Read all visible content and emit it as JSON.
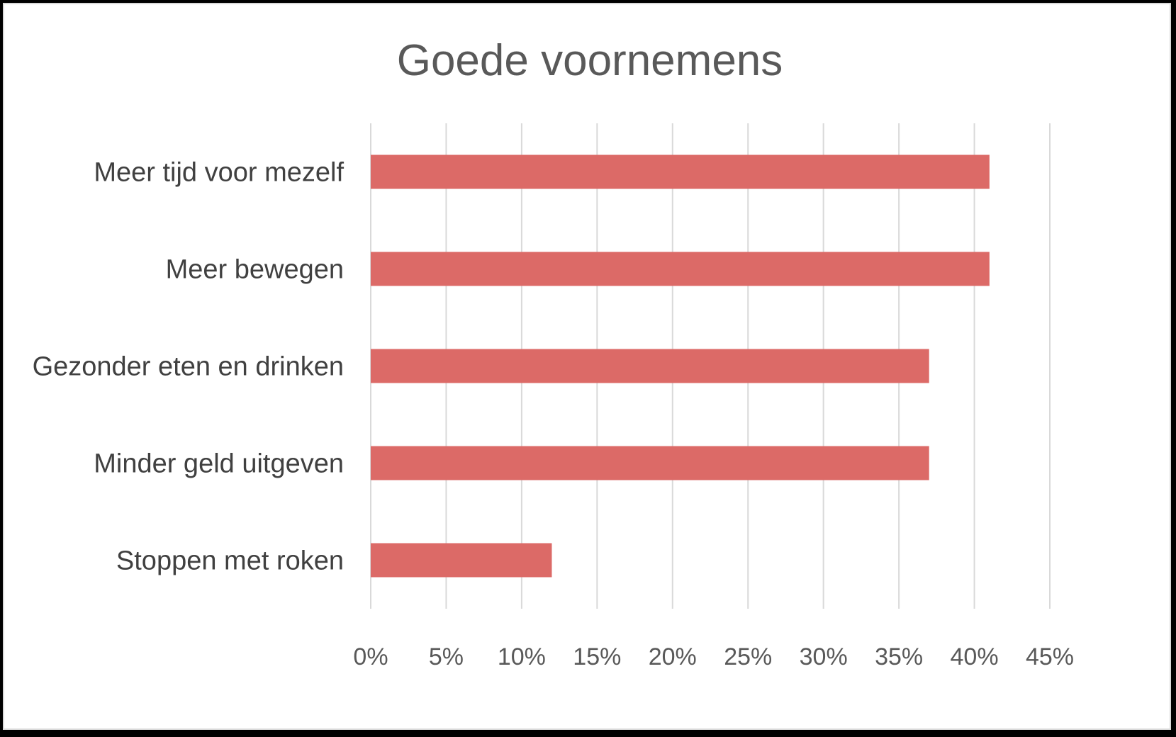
{
  "chart_data": {
    "type": "bar",
    "orientation": "horizontal",
    "title": "Goede voornemens",
    "xlabel": "",
    "ylabel": "",
    "categories": [
      "Meer tijd voor mezelf",
      "Meer bewegen",
      "Gezonder eten en drinken",
      "Minder geld uitgeven",
      "Stoppen met roken"
    ],
    "values": [
      41,
      41,
      37,
      37,
      12
    ],
    "value_unit": "%",
    "xlim": [
      0,
      45
    ],
    "x_ticks": [
      "0%",
      "5%",
      "10%",
      "15%",
      "20%",
      "25%",
      "30%",
      "35%",
      "40%",
      "45%"
    ],
    "grid": "vertical",
    "legend": "none",
    "bar_color": "#dc6a67",
    "grid_color": "#d9d9d9"
  }
}
